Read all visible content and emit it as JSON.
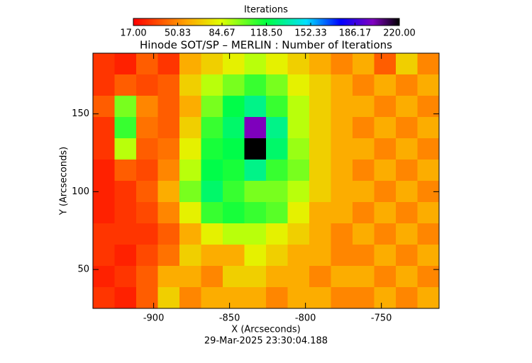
{
  "chart_data": {
    "type": "heatmap",
    "title": "Hinode SOT/SP – MERLIN : Number of Iterations",
    "colorbar_title": "Iterations",
    "x_label": "X (Arcseconds)",
    "y_label": "Y (Arcseconds)",
    "footer": "29-Mar-2025 23:30:04.188",
    "xlim": [
      -940,
      -712
    ],
    "ylim": [
      25,
      189
    ],
    "xticks": [
      -900,
      -850,
      -800,
      -750
    ],
    "yticks": [
      50,
      100,
      150
    ],
    "zlim": [
      17,
      220
    ],
    "zticks": [
      {
        "value": 17,
        "label": "17.00"
      },
      {
        "value": 50.83,
        "label": "50.83"
      },
      {
        "value": 84.67,
        "label": "84.67"
      },
      {
        "value": 118.5,
        "label": "118.50"
      },
      {
        "value": 152.33,
        "label": "152.33"
      },
      {
        "value": 186.17,
        "label": "186.17"
      },
      {
        "value": 220,
        "label": "220.00"
      }
    ],
    "colorscale": [
      [
        0,
        "#ff0000"
      ],
      [
        0.2,
        "#ffa500"
      ],
      [
        0.33,
        "#e0ff00"
      ],
      [
        0.5,
        "#00ff40"
      ],
      [
        0.65,
        "#00e0ff"
      ],
      [
        0.78,
        "#0000ff"
      ],
      [
        0.9,
        "#8000c0"
      ],
      [
        1,
        "#000000"
      ]
    ],
    "z": [
      [
        30,
        25,
        40,
        30,
        60,
        70,
        80,
        90,
        80,
        70,
        60,
        50,
        60,
        40,
        70,
        50
      ],
      [
        30,
        40,
        35,
        40,
        70,
        90,
        100,
        110,
        100,
        80,
        70,
        60,
        50,
        60,
        50,
        60
      ],
      [
        40,
        100,
        50,
        40,
        60,
        100,
        120,
        130,
        110,
        90,
        70,
        60,
        60,
        50,
        60,
        50
      ],
      [
        30,
        110,
        45,
        40,
        70,
        110,
        125,
        200,
        130,
        90,
        70,
        60,
        50,
        60,
        50,
        60
      ],
      [
        30,
        90,
        40,
        45,
        80,
        115,
        120,
        220,
        125,
        95,
        70,
        60,
        60,
        50,
        60,
        50
      ],
      [
        25,
        40,
        35,
        50,
        90,
        120,
        115,
        130,
        110,
        100,
        70,
        60,
        50,
        60,
        50,
        60
      ],
      [
        25,
        30,
        40,
        60,
        100,
        125,
        110,
        100,
        100,
        90,
        70,
        60,
        60,
        50,
        60,
        50
      ],
      [
        25,
        30,
        35,
        50,
        80,
        110,
        115,
        110,
        105,
        80,
        60,
        60,
        50,
        60,
        50,
        60
      ],
      [
        30,
        30,
        30,
        40,
        60,
        80,
        90,
        90,
        80,
        70,
        60,
        50,
        60,
        50,
        60,
        50
      ],
      [
        30,
        25,
        35,
        45,
        70,
        60,
        60,
        80,
        70,
        60,
        60,
        50,
        50,
        60,
        50,
        60
      ],
      [
        25,
        30,
        40,
        60,
        60,
        50,
        70,
        70,
        60,
        60,
        50,
        60,
        60,
        50,
        60,
        50
      ],
      [
        30,
        25,
        40,
        70,
        50,
        60,
        60,
        60,
        50,
        60,
        60,
        50,
        50,
        60,
        50,
        60
      ]
    ]
  }
}
